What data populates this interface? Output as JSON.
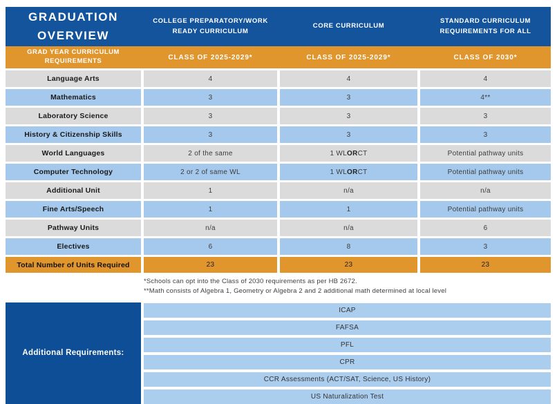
{
  "colors": {
    "dark_blue": "#14549C",
    "bottom_blue": "#0D4E96",
    "orange": "#E0952D",
    "light_blue_row": "#A5C9EC",
    "gray_row": "#DBDBDB",
    "bottom_light_blue": "#ABCDEE"
  },
  "header": {
    "title_line1": "GRADUATION",
    "title_line2": "OVERVIEW",
    "columns": [
      "COLLEGE PREPARATORY/WORK READY CURRICULUM",
      "CORE CURRICULUM",
      "STANDARD CURRICULUM REQUIREMENTS FOR ALL"
    ]
  },
  "subheader": {
    "label": "GRAD YEAR CURRICULUM REQUIREMENTS",
    "columns": [
      "CLASS OF 2025-2029*",
      "CLASS OF 2025-2029*",
      "CLASS OF 2030*"
    ]
  },
  "rows": [
    {
      "label": "Language Arts",
      "cells": [
        "4",
        "4",
        "4"
      ],
      "shade": "gray"
    },
    {
      "label": "Mathematics",
      "cells": [
        "3",
        "3",
        "4**"
      ],
      "shade": "blue"
    },
    {
      "label": "Laboratory Science",
      "cells": [
        "3",
        "3",
        "3"
      ],
      "shade": "gray"
    },
    {
      "label": "History & Citizenship Skills",
      "cells": [
        "3",
        "3",
        "3"
      ],
      "shade": "blue"
    },
    {
      "label": "World Languages",
      "cells": [
        "2 of the same",
        "1 WL OR CT",
        "Potential pathway units"
      ],
      "shade": "gray"
    },
    {
      "label": "Computer Technology",
      "cells": [
        "2 or 2 of same WL",
        "1 WL OR CT",
        "Potential pathway units"
      ],
      "shade": "blue"
    },
    {
      "label": "Additional Unit",
      "cells": [
        "1",
        "n/a",
        "n/a"
      ],
      "shade": "gray"
    },
    {
      "label": "Fine Arts/Speech",
      "cells": [
        "1",
        "1",
        "Potential pathway units"
      ],
      "shade": "blue"
    },
    {
      "label": "Pathway Units",
      "cells": [
        "n/a",
        "n/a",
        "6"
      ],
      "shade": "gray"
    },
    {
      "label": "Electives",
      "cells": [
        "6",
        "8",
        "3"
      ],
      "shade": "blue"
    }
  ],
  "total_row": {
    "label": "Total Number of Units Required",
    "cells": [
      "23",
      "23",
      "23"
    ]
  },
  "footnotes": [
    "*Schools can opt into the Class of 2030 requirements as per HB 2672.",
    "**Math consists of Algebra 1, Geometry or Algebra 2 and 2 additional math determined at local level"
  ],
  "additional_requirements": {
    "label": "Additional Requirements:",
    "items": [
      "ICAP",
      "FAFSA",
      "PFL",
      "CPR",
      "CCR Assessments (ACT/SAT, Science, US History)",
      "US Naturalization Test"
    ]
  }
}
